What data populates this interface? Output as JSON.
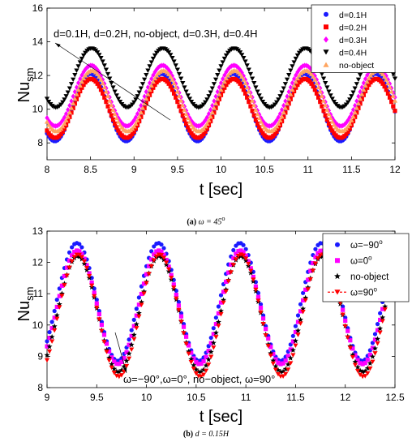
{
  "chart_data": [
    {
      "type": "scatter",
      "xlabel": "t [sec]",
      "ylabel_base": "Nu",
      "ylabel_sub": "sm",
      "xlim": [
        8,
        12
      ],
      "ylim": [
        7,
        16
      ],
      "xticks": [
        8,
        8.5,
        9,
        9.5,
        10,
        10.5,
        11,
        11.5,
        12
      ],
      "xtick_labels": [
        "8",
        "8.5",
        "9",
        "9.5",
        "10",
        "10.5",
        "11",
        "11.5",
        "12"
      ],
      "yticks": [
        8,
        10,
        12,
        14,
        16
      ],
      "ytick_labels": [
        "8",
        "10",
        "12",
        "14",
        "16"
      ],
      "grid": false,
      "legend_position": "top-right",
      "annotation": "d=0.1H, d=0.2H, no-object, d=0.3H, d=0.4H",
      "period_sec": 0.82,
      "peak_times_sec": [
        8.5,
        9.32,
        10.14,
        10.96,
        11.78
      ],
      "series": [
        {
          "name": "d=0.1H",
          "color": "#1a1aff",
          "marker": "circle",
          "min": 8.1,
          "max": 12.1
        },
        {
          "name": "d=0.2H",
          "color": "#ff0000",
          "marker": "square",
          "min": 8.3,
          "max": 11.8
        },
        {
          "name": "d=0.3H",
          "color": "#ff00ff",
          "marker": "diamond",
          "min": 9.0,
          "max": 12.6
        },
        {
          "name": "d=0.4H",
          "color": "#000000",
          "marker": "triangle-down",
          "min": 10.1,
          "max": 13.6
        },
        {
          "name": "no-object",
          "color": "#ffa560",
          "marker": "triangle-up",
          "min": 8.7,
          "max": 12.3
        }
      ]
    },
    {
      "type": "scatter",
      "xlabel": "t [sec]",
      "ylabel_base": "Nu",
      "ylabel_sub": "sm",
      "xlim": [
        9,
        12.5
      ],
      "ylim": [
        8,
        13
      ],
      "xticks": [
        9,
        9.5,
        10,
        10.5,
        11,
        11.5,
        12,
        12.5
      ],
      "xtick_labels": [
        "9",
        "9.5",
        "10",
        "10.5",
        "11",
        "11.5",
        "12",
        "12.5"
      ],
      "yticks": [
        8,
        9,
        10,
        11,
        12,
        13
      ],
      "ytick_labels": [
        "8",
        "9",
        "10",
        "11",
        "12",
        "13"
      ],
      "grid": false,
      "legend_position": "top-right",
      "annotation": "ω=−90°,ω=0°, no−object, ω=90°",
      "period_sec": 0.82,
      "peak_times_sec": [
        9.3,
        10.12,
        10.94,
        11.76
      ],
      "data_end_sec": 12.4,
      "series": [
        {
          "name": "ω=−90°",
          "label_base": "ω=−90",
          "label_sup": "o",
          "color": "#1a1aff",
          "marker": "circle",
          "min": 8.85,
          "max": 12.62
        },
        {
          "name": "ω=0°",
          "label_base": "ω=0",
          "label_sup": "o",
          "color": "#ff00ff",
          "marker": "square",
          "min": 8.75,
          "max": 12.38
        },
        {
          "name": "no-object",
          "label_base": "no-object",
          "label_sup": "",
          "color": "#000000",
          "marker": "star",
          "min": 8.5,
          "max": 12.2
        },
        {
          "name": "ω=90°",
          "label_base": "ω=90",
          "label_sup": "o",
          "color": "#ff0000",
          "marker": "triangle-down",
          "min": 8.35,
          "max": 12.25
        }
      ]
    }
  ],
  "captions": {
    "a": {
      "label": "(a)",
      "text_pre": "ω = 45",
      "text_sup": "o"
    },
    "b": {
      "label": "(b)",
      "text_pre": "d = 0.15",
      "text_italic": "H"
    }
  }
}
